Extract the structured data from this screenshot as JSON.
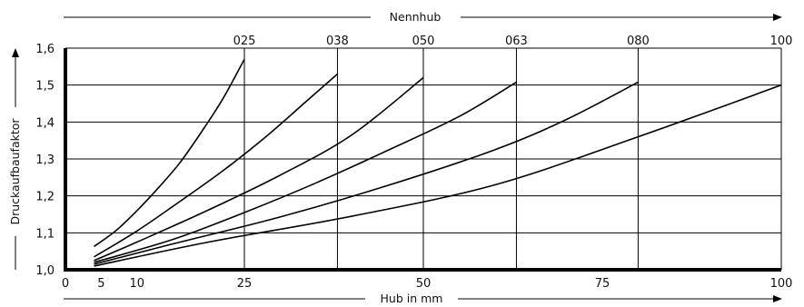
{
  "chart_data": {
    "type": "line",
    "title": "",
    "xlabel": "Hub in mm",
    "ylabel": "Druckaufbaufaktor",
    "top_label": "Nennhub",
    "xlim": [
      0,
      100
    ],
    "ylim": [
      1.0,
      1.6
    ],
    "x_ticks": [
      0,
      5,
      10,
      25,
      50,
      75,
      100
    ],
    "y_ticks": [
      1.0,
      1.1,
      1.2,
      1.3,
      1.4,
      1.5,
      1.6
    ],
    "x_tick_labels": [
      "0",
      "5",
      "10",
      "25",
      "50",
      "75",
      "100"
    ],
    "y_tick_labels": [
      "1,0",
      "1,1",
      "1,2",
      "1,3",
      "1,4",
      "1,5",
      "1,6"
    ],
    "nominal_strokes": [
      {
        "label": "025",
        "x": 25
      },
      {
        "label": "038",
        "x": 38
      },
      {
        "label": "050",
        "x": 50
      },
      {
        "label": "063",
        "x": 63
      },
      {
        "label": "080",
        "x": 80
      },
      {
        "label": "100",
        "x": 100
      }
    ],
    "series": [
      {
        "x": [
          4,
          7,
          10,
          13,
          16,
          19,
          22,
          25
        ],
        "y": [
          1.063,
          1.105,
          1.16,
          1.222,
          1.29,
          1.373,
          1.463,
          1.57
        ]
      },
      {
        "x": [
          4,
          10,
          16,
          22,
          28,
          34,
          38
        ],
        "y": [
          1.035,
          1.105,
          1.185,
          1.268,
          1.36,
          1.462,
          1.53
        ]
      },
      {
        "x": [
          4,
          10,
          20,
          30,
          40,
          50
        ],
        "y": [
          1.025,
          1.075,
          1.162,
          1.256,
          1.365,
          1.52
        ]
      },
      {
        "x": [
          4,
          15,
          25,
          35,
          45,
          55,
          63
        ],
        "y": [
          1.02,
          1.082,
          1.155,
          1.235,
          1.323,
          1.415,
          1.508
        ]
      },
      {
        "x": [
          4,
          15,
          30,
          45,
          60,
          70,
          80
        ],
        "y": [
          1.015,
          1.07,
          1.143,
          1.228,
          1.325,
          1.407,
          1.508
        ]
      },
      {
        "x": [
          4,
          20,
          40,
          60,
          80,
          100
        ],
        "y": [
          1.01,
          1.075,
          1.145,
          1.23,
          1.36,
          1.5
        ]
      }
    ],
    "grid": true,
    "legend": "none"
  }
}
